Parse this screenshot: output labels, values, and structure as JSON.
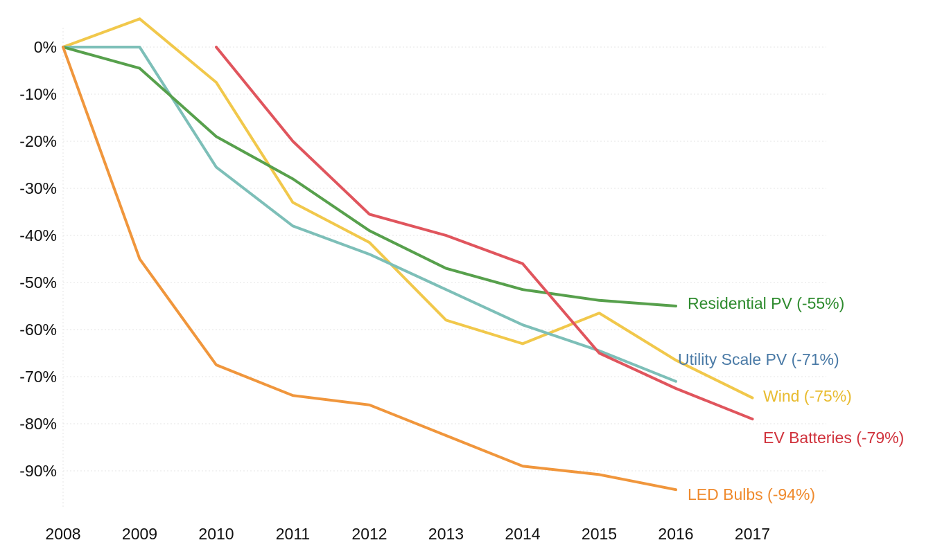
{
  "chart_data": {
    "type": "line",
    "title": "",
    "xlabel": "",
    "ylabel": "",
    "x": [
      "2008",
      "2009",
      "2010",
      "2011",
      "2012",
      "2013",
      "2014",
      "2015",
      "2016",
      "2017"
    ],
    "ylim": [
      -99,
      6
    ],
    "yticks": [
      0,
      -10,
      -20,
      -30,
      -40,
      -50,
      -60,
      -70,
      -80,
      -90
    ],
    "ytick_labels": [
      "0%",
      "-10%",
      "-20%",
      "-30%",
      "-40%",
      "-50%",
      "-60%",
      "-70%",
      "-80%",
      "-90%"
    ],
    "grid": true,
    "series": [
      {
        "name": "Wind",
        "label": "Wind (-75%)",
        "color": "#f1c84b",
        "label_color": "#e8bb2e",
        "values": [
          0,
          6,
          -7.5,
          -33,
          -41.5,
          -58,
          -63,
          -56.5,
          -66.5,
          -74.5
        ]
      },
      {
        "name": "Utility Scale PV",
        "label": "Utility Scale PV (-71%)",
        "color": "#7dbfb8",
        "label_color": "#4a7aa6",
        "values": [
          0,
          0,
          -25.5,
          -38,
          -44,
          -51.5,
          -59,
          -64.5,
          -71,
          null
        ]
      },
      {
        "name": "Residential PV",
        "label": "Residential PV (-55%)",
        "color": "#57a04c",
        "label_color": "#2e8b2e",
        "values": [
          0,
          -4.5,
          -19,
          -28,
          -39,
          -47,
          -51.5,
          -53.8,
          -55,
          null
        ]
      },
      {
        "name": "EV Batteries",
        "label": "EV Batteries (-79%)",
        "color": "#e0555d",
        "label_color": "#d0323c",
        "values": [
          null,
          null,
          0,
          -20,
          -35.5,
          -40,
          -46,
          -65,
          -72.5,
          -79
        ]
      },
      {
        "name": "LED Bulbs",
        "label": "LED Bulbs (-94%)",
        "color": "#f0963c",
        "label_color": "#ef8a2d",
        "values": [
          0,
          -45,
          -67.5,
          -74,
          -76,
          -82.5,
          -89,
          -90.8,
          -94,
          null
        ]
      }
    ]
  }
}
